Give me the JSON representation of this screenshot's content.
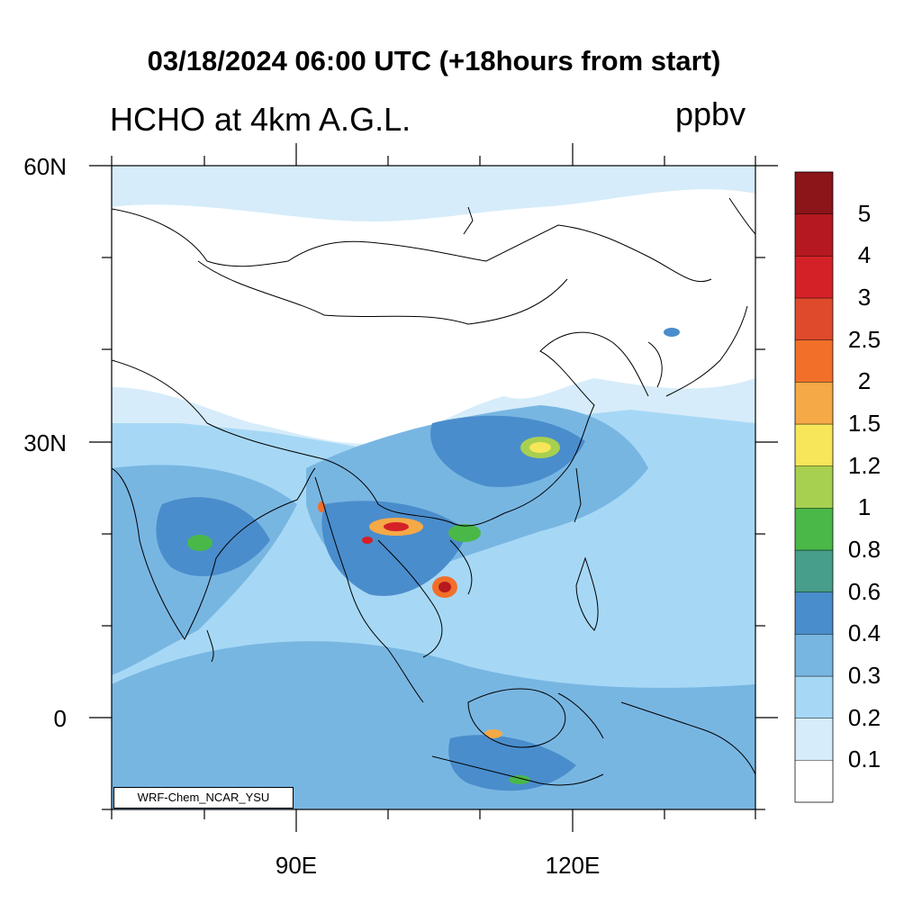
{
  "title": "03/18/2024 06:00 UTC (+18hours from start)",
  "subtitle_left": "HCHO at 4km A.G.L.",
  "units": "ppbv",
  "credit": "WRF-Chem_NCAR_YSU",
  "lat_ticks": [
    {
      "label": "60N",
      "value": 60
    },
    {
      "label": "30N",
      "value": 30
    },
    {
      "label": "0",
      "value": 0
    }
  ],
  "lon_ticks": [
    {
      "label": "90E",
      "value": 90
    },
    {
      "label": "120E",
      "value": 120
    }
  ],
  "colorbar": {
    "levels": [
      "0.1",
      "0.2",
      "0.3",
      "0.4",
      "0.6",
      "0.8",
      "1",
      "1.2",
      "1.5",
      "2",
      "2.5",
      "3",
      "4",
      "5"
    ],
    "colors": [
      "#ffffff",
      "#d6ecfa",
      "#a6d8f5",
      "#78b6e2",
      "#4a8dcc",
      "#479e8a",
      "#49b848",
      "#a8d050",
      "#f7e659",
      "#f5a947",
      "#f26f2a",
      "#e04a2c",
      "#d42128",
      "#b5191f",
      "#8b1519"
    ]
  },
  "colors": {
    "land_no_data": "#ffffff",
    "ocean_background": "#a6d8f5",
    "coastline": "#000000"
  }
}
